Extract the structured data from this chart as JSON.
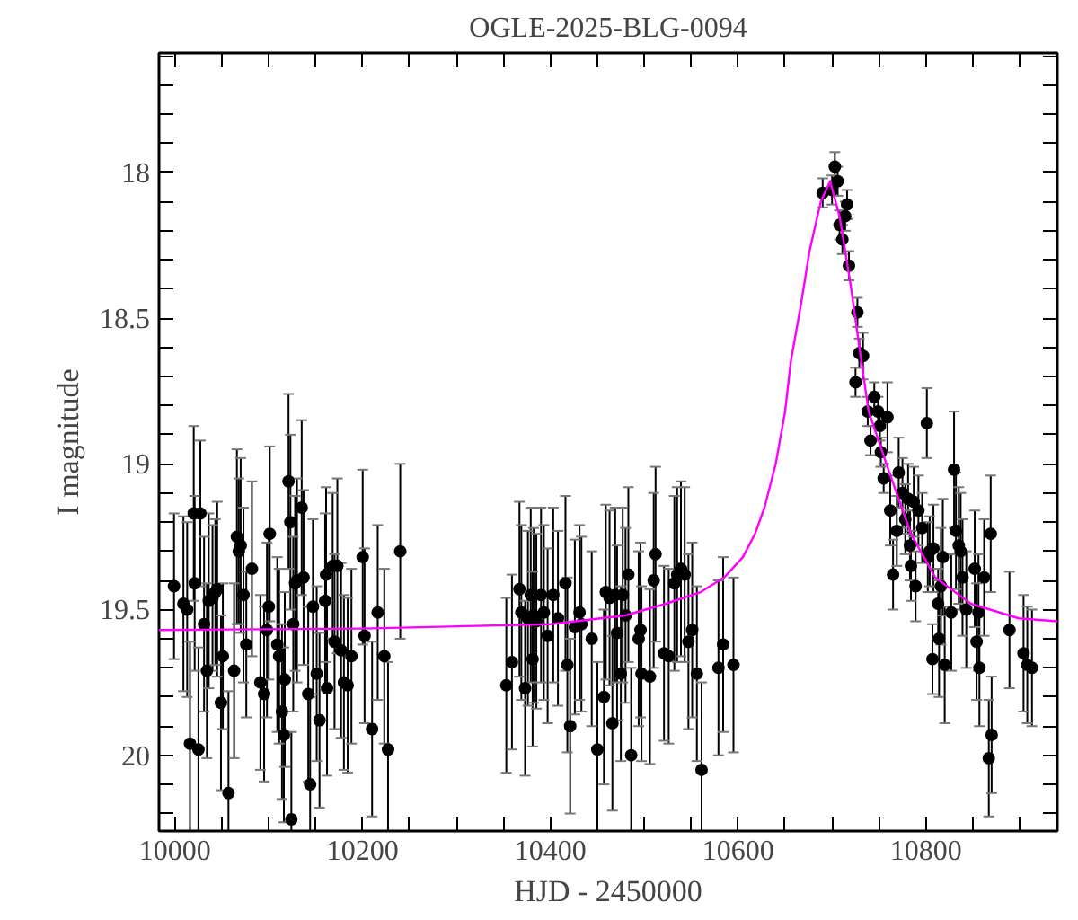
{
  "chart_data": {
    "type": "scatter",
    "title": "OGLE-2025-BLG-0094",
    "xlabel": "HJD - 2450000",
    "ylabel": "I magnitude",
    "xlim": [
      9983,
      10940
    ],
    "ylim": [
      20.26,
      17.59
    ],
    "xticks": [
      10000,
      {
        "value": 10050,
        "label": null
      },
      {
        "value": 10100,
        "label": null
      },
      {
        "value": 10150,
        "label": null
      },
      10200,
      {
        "value": 10250,
        "label": null
      },
      {
        "value": 10300,
        "label": null
      },
      {
        "value": 10350,
        "label": null
      },
      10400,
      {
        "value": 10450,
        "label": null
      },
      {
        "value": 10500,
        "label": null
      },
      {
        "value": 10550,
        "label": null
      },
      10600,
      {
        "value": 10650,
        "label": null
      },
      {
        "value": 10700,
        "label": null
      },
      {
        "value": 10750,
        "label": null
      },
      10800,
      {
        "value": 10850,
        "label": null
      },
      {
        "value": 10900,
        "label": null
      }
    ],
    "yticks": [
      {
        "value": 17.6,
        "label": null
      },
      {
        "value": 17.7,
        "label": null
      },
      {
        "value": 17.8,
        "label": null
      },
      {
        "value": 17.9,
        "label": null
      },
      18,
      {
        "value": 18.1,
        "label": null
      },
      {
        "value": 18.2,
        "label": null
      },
      {
        "value": 18.3,
        "label": null
      },
      {
        "value": 18.4,
        "label": null
      },
      18.5,
      {
        "value": 18.6,
        "label": null
      },
      {
        "value": 18.7,
        "label": null
      },
      {
        "value": 18.8,
        "label": null
      },
      {
        "value": 18.9,
        "label": null
      },
      19,
      {
        "value": 19.1,
        "label": null
      },
      {
        "value": 19.2,
        "label": null
      },
      {
        "value": 19.3,
        "label": null
      },
      {
        "value": 19.4,
        "label": null
      },
      19.5,
      {
        "value": 19.6,
        "label": null
      },
      {
        "value": 19.7,
        "label": null
      },
      {
        "value": 19.8,
        "label": null
      },
      {
        "value": 19.9,
        "label": null
      },
      20,
      {
        "value": 20.1,
        "label": null
      },
      {
        "value": 20.2,
        "label": null
      }
    ],
    "grid": false,
    "marker": "circle",
    "series": [
      {
        "color": "#000000",
        "x": [
          9999,
          10009,
          10013,
          10016,
          10020,
          10021,
          10025,
          10027,
          10031,
          10034,
          10036,
          10040,
          10043,
          10045,
          10049,
          10051,
          10057,
          10063,
          10066,
          10068,
          10070,
          10073,
          10076,
          10082,
          10091,
          10095,
          10101,
          10100,
          10098,
          10109,
          10111,
          10114,
          10116,
          10117,
          10121,
          10123,
          10124,
          10126,
          10128,
          10130,
          10135,
          10137,
          10142,
          10144,
          10147,
          10151,
          10154,
          10160,
          10161,
          10162,
          10168,
          10170,
          10173,
          10177,
          10180,
          10184,
          10188,
          10200,
          10202,
          10210,
          10216,
          10223,
          10227,
          10240,
          10353,
          10359,
          10367,
          10369,
          10373,
          10376,
          10379,
          10381,
          10382,
          10385,
          10390,
          10393,
          10397,
          10403,
          10408,
          10416,
          10418,
          10421,
          10426,
          10431,
          10433,
          10444,
          10450,
          10457,
          10459,
          10463,
          10466,
          10469,
          10471,
          10475,
          10477,
          10480,
          10483,
          10486,
          10494,
          10496,
          10497,
          10506,
          10510,
          10512,
          10521,
          10526,
          10532,
          10535,
          10539,
          10543,
          10547,
          10551,
          10556,
          10561,
          10579,
          10584,
          10595,
          10690,
          10700,
          10703,
          10706,
          10708,
          10711,
          10714,
          10716,
          10718,
          10727,
          10725,
          10729,
          10733,
          10738,
          10741,
          10745,
          10749,
          10751,
          10752,
          10755,
          10759,
          10762,
          10765,
          10769,
          10771,
          10775,
          10778,
          10781,
          10783,
          10784,
          10787,
          10789,
          10792,
          10796,
          10801,
          10802,
          10804,
          10807,
          10808,
          10813,
          10814,
          10816,
          10818,
          10820,
          10827,
          10830,
          10832,
          10835,
          10837,
          10839,
          10843,
          10852,
          10854,
          10856,
          10857,
          10862,
          10867,
          10870,
          10869,
          10889,
          10904,
          10908,
          10913
        ],
        "values": [
          19.42,
          19.48,
          19.5,
          19.96,
          19.17,
          19.41,
          19.98,
          19.17,
          19.55,
          19.71,
          19.47,
          19.46,
          19.44,
          19.43,
          19.82,
          19.66,
          20.13,
          19.71,
          19.25,
          19.3,
          19.28,
          19.45,
          19.62,
          19.36,
          19.75,
          19.79,
          19.24,
          19.49,
          19.57,
          19.62,
          19.66,
          19.85,
          19.93,
          19.74,
          19.06,
          19.2,
          20.22,
          19.55,
          19.41,
          19.4,
          19.15,
          19.39,
          19.79,
          20.1,
          19.49,
          19.72,
          19.88,
          19.47,
          19.38,
          19.77,
          19.35,
          19.61,
          19.35,
          19.64,
          19.75,
          19.76,
          19.66,
          19.32,
          19.59,
          19.91,
          19.51,
          19.66,
          19.98,
          19.3,
          19.76,
          19.68,
          19.43,
          19.51,
          19.77,
          19.53,
          19.45,
          19.67,
          19.52,
          19.54,
          19.45,
          19.51,
          19.59,
          19.45,
          19.53,
          19.41,
          19.69,
          19.9,
          19.56,
          19.51,
          19.55,
          19.6,
          19.98,
          19.8,
          19.44,
          19.46,
          19.89,
          19.45,
          19.58,
          19.72,
          19.45,
          19.52,
          19.38,
          20.0,
          19.6,
          19.57,
          19.72,
          19.73,
          19.4,
          19.31,
          19.65,
          19.66,
          19.41,
          19.38,
          19.36,
          19.38,
          19.61,
          19.57,
          19.72,
          20.05,
          19.7,
          19.62,
          19.69,
          18.07,
          18.06,
          17.98,
          18.03,
          18.18,
          18.23,
          18.15,
          18.11,
          18.32,
          18.48,
          18.72,
          18.62,
          18.63,
          18.82,
          18.92,
          18.77,
          18.82,
          18.87,
          18.96,
          19.05,
          18.84,
          19.16,
          19.38,
          19.23,
          19.03,
          19.1,
          19.19,
          19.12,
          19.28,
          19.35,
          19.13,
          19.42,
          19.16,
          19.22,
          18.86,
          19.32,
          19.3,
          19.67,
          19.29,
          19.48,
          19.6,
          19.42,
          19.32,
          19.69,
          19.51,
          19.02,
          19.23,
          19.28,
          19.3,
          19.39,
          19.5,
          19.36,
          19.61,
          19.51,
          19.7,
          19.39,
          20.01,
          19.93,
          19.24,
          19.57,
          19.65,
          19.69,
          19.7
        ],
        "errors": [
          0.25,
          0.3,
          0.3,
          0.35,
          0.3,
          0.3,
          0.35,
          0.25,
          0.3,
          0.3,
          0.3,
          0.25,
          0.25,
          0.3,
          0.3,
          0.25,
          0.35,
          0.3,
          0.3,
          0.25,
          0.3,
          0.3,
          0.25,
          0.3,
          0.3,
          0.3,
          0.3,
          0.25,
          0.3,
          0.3,
          0.3,
          0.3,
          0.3,
          0.3,
          0.3,
          0.3,
          0.3,
          0.3,
          0.3,
          0.35,
          0.3,
          0.3,
          0.3,
          0.3,
          0.3,
          0.3,
          0.3,
          0.3,
          0.3,
          0.3,
          0.25,
          0.3,
          0.3,
          0.3,
          0.3,
          0.3,
          0.3,
          0.3,
          0.3,
          0.3,
          0.3,
          0.3,
          0.3,
          0.3,
          0.3,
          0.3,
          0.3,
          0.3,
          0.3,
          0.3,
          0.3,
          0.3,
          0.3,
          0.3,
          0.3,
          0.3,
          0.3,
          0.3,
          0.3,
          0.3,
          0.3,
          0.3,
          0.3,
          0.3,
          0.3,
          0.3,
          0.3,
          0.3,
          0.3,
          0.3,
          0.3,
          0.3,
          0.3,
          0.3,
          0.3,
          0.3,
          0.3,
          0.3,
          0.3,
          0.3,
          0.3,
          0.3,
          0.3,
          0.3,
          0.3,
          0.3,
          0.3,
          0.3,
          0.3,
          0.3,
          0.3,
          0.3,
          0.3,
          0.3,
          0.3,
          0.3,
          0.3,
          0.05,
          0.05,
          0.05,
          0.05,
          0.05,
          0.05,
          0.05,
          0.05,
          0.05,
          0.05,
          0.05,
          0.05,
          0.08,
          0.05,
          0.05,
          0.05,
          0.05,
          0.05,
          0.05,
          0.05,
          0.12,
          0.12,
          0.12,
          0.12,
          0.12,
          0.12,
          0.12,
          0.12,
          0.12,
          0.12,
          0.12,
          0.12,
          0.12,
          0.12,
          0.12,
          0.12,
          0.12,
          0.12,
          0.15,
          0.12,
          0.2,
          0.2,
          0.2,
          0.2,
          0.2,
          0.2,
          0.2,
          0.2,
          0.2,
          0.2,
          0.2,
          0.2,
          0.2,
          0.2,
          0.2,
          0.2,
          0.2,
          0.2,
          0.2,
          0.2,
          0.2,
          0.2,
          0.2
        ]
      },
      {
        "type": "line",
        "color": "#ff00ff",
        "marker": "none",
        "x": [
          9983,
          10200,
          10400,
          10480,
          10523,
          10560,
          10585,
          10605,
          10618,
          10628,
          10640,
          10650,
          10656,
          10667,
          10676,
          10688,
          10698,
          10708,
          10720,
          10730,
          10739,
          10759,
          10784,
          10810,
          10848,
          10899,
          10940
        ],
        "values": [
          19.57,
          19.565,
          19.55,
          19.52,
          19.48,
          19.44,
          19.39,
          19.32,
          19.24,
          19.15,
          19.0,
          18.82,
          18.65,
          18.45,
          18.27,
          18.1,
          18.03,
          18.15,
          18.39,
          18.62,
          18.82,
          19.01,
          19.24,
          19.39,
          19.48,
          19.53,
          19.54
        ]
      }
    ]
  }
}
